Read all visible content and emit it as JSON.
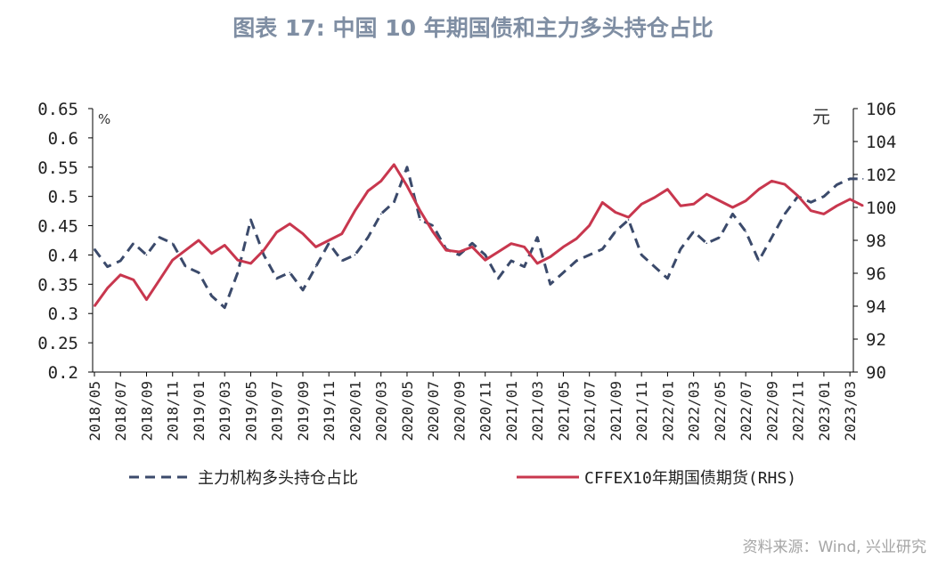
{
  "title": "图表 17: 中国 10 年期国债和主力多头持仓占比",
  "source": "资料来源：Wind, 兴业研究",
  "chart_data": {
    "type": "line",
    "title": "图表 17: 中国 10 年期国债和主力多头持仓占比",
    "ylabel_left": "%",
    "ylabel_right": "元",
    "ylim_left": [
      0.2,
      0.65
    ],
    "ylim_right": [
      90,
      106
    ],
    "yticks_left": [
      "0.2",
      "0.25",
      "0.3",
      "0.35",
      "0.4",
      "0.45",
      "0.5",
      "0.55",
      "0.6",
      "0.65"
    ],
    "yticks_right": [
      "90",
      "92",
      "94",
      "96",
      "98",
      "100",
      "102",
      "104",
      "106"
    ],
    "xticks": [
      "2018/05",
      "2018/07",
      "2018/09",
      "2018/11",
      "2019/01",
      "2019/03",
      "2019/05",
      "2019/07",
      "2019/09",
      "2019/11",
      "2020/01",
      "2020/03",
      "2020/05",
      "2020/07",
      "2020/09",
      "2020/11",
      "2021/01",
      "2021/03",
      "2021/05",
      "2021/07",
      "2021/09",
      "2021/11",
      "2022/01",
      "2022/03",
      "2022/05",
      "2022/07",
      "2022/09",
      "2022/11",
      "2023/01",
      "2023/03"
    ],
    "legend_position": "bottom",
    "series": [
      {
        "name": "主力机构多头持仓占比",
        "axis": "left",
        "style": "dashed",
        "color": "#3b4a6b",
        "x": [
          "2018/05",
          "2018/06",
          "2018/07",
          "2018/08",
          "2018/09",
          "2018/10",
          "2018/11",
          "2018/12",
          "2019/01",
          "2019/02",
          "2019/03",
          "2019/04",
          "2019/05",
          "2019/06",
          "2019/07",
          "2019/08",
          "2019/09",
          "2019/10",
          "2019/11",
          "2019/12",
          "2020/01",
          "2020/02",
          "2020/03",
          "2020/04",
          "2020/05",
          "2020/06",
          "2020/07",
          "2020/08",
          "2020/09",
          "2020/10",
          "2020/11",
          "2020/12",
          "2021/01",
          "2021/02",
          "2021/03",
          "2021/04",
          "2021/05",
          "2021/06",
          "2021/07",
          "2021/08",
          "2021/09",
          "2021/10",
          "2021/11",
          "2021/12",
          "2022/01",
          "2022/02",
          "2022/03",
          "2022/04",
          "2022/05",
          "2022/06",
          "2022/07",
          "2022/08",
          "2022/09",
          "2022/10",
          "2022/11",
          "2022/12",
          "2023/01",
          "2023/02",
          "2023/03",
          "2023/04"
        ],
        "values": [
          0.41,
          0.38,
          0.39,
          0.42,
          0.4,
          0.43,
          0.42,
          0.38,
          0.37,
          0.33,
          0.31,
          0.37,
          0.46,
          0.4,
          0.36,
          0.37,
          0.34,
          0.38,
          0.42,
          0.39,
          0.4,
          0.43,
          0.47,
          0.49,
          0.55,
          0.46,
          0.45,
          0.41,
          0.4,
          0.42,
          0.4,
          0.36,
          0.39,
          0.38,
          0.43,
          0.35,
          0.37,
          0.39,
          0.4,
          0.41,
          0.44,
          0.46,
          0.4,
          0.38,
          0.36,
          0.41,
          0.44,
          0.42,
          0.43,
          0.47,
          0.44,
          0.39,
          0.43,
          0.47,
          0.5,
          0.49,
          0.5,
          0.52,
          0.53,
          0.53
        ]
      },
      {
        "name": "CFFEX10年期国债期货(RHS)",
        "axis": "right",
        "style": "solid",
        "color": "#c8374e",
        "x": [
          "2018/05",
          "2018/06",
          "2018/07",
          "2018/08",
          "2018/09",
          "2018/10",
          "2018/11",
          "2018/12",
          "2019/01",
          "2019/02",
          "2019/03",
          "2019/04",
          "2019/05",
          "2019/06",
          "2019/07",
          "2019/08",
          "2019/09",
          "2019/10",
          "2019/11",
          "2019/12",
          "2020/01",
          "2020/02",
          "2020/03",
          "2020/04",
          "2020/05",
          "2020/06",
          "2020/07",
          "2020/08",
          "2020/09",
          "2020/10",
          "2020/11",
          "2020/12",
          "2021/01",
          "2021/02",
          "2021/03",
          "2021/04",
          "2021/05",
          "2021/06",
          "2021/07",
          "2021/08",
          "2021/09",
          "2021/10",
          "2021/11",
          "2021/12",
          "2022/01",
          "2022/02",
          "2022/03",
          "2022/04",
          "2022/05",
          "2022/06",
          "2022/07",
          "2022/08",
          "2022/09",
          "2022/10",
          "2022/11",
          "2022/12",
          "2023/01",
          "2023/02",
          "2023/03",
          "2023/04"
        ],
        "values": [
          94.0,
          95.1,
          95.9,
          95.6,
          94.4,
          95.6,
          96.8,
          97.4,
          98.0,
          97.2,
          97.7,
          96.8,
          96.6,
          97.4,
          98.5,
          99.0,
          98.4,
          97.6,
          98.0,
          98.4,
          99.8,
          101.0,
          101.6,
          102.6,
          101.3,
          99.8,
          98.5,
          97.4,
          97.3,
          97.6,
          96.8,
          97.3,
          97.8,
          97.6,
          96.6,
          97.0,
          97.6,
          98.1,
          98.9,
          100.3,
          99.7,
          99.4,
          100.2,
          100.6,
          101.1,
          100.1,
          100.2,
          100.8,
          100.4,
          100.0,
          100.4,
          101.1,
          101.6,
          101.4,
          100.7,
          99.8,
          99.6,
          100.1,
          100.5,
          100.1
        ]
      }
    ]
  }
}
